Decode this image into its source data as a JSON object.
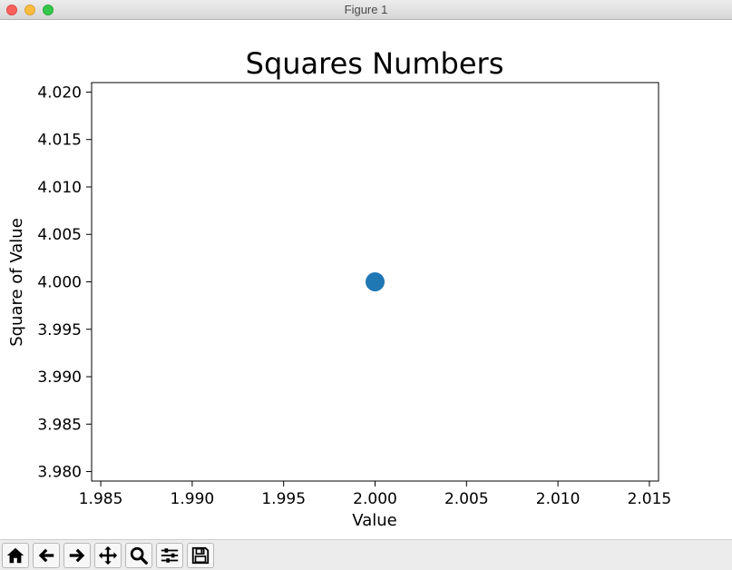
{
  "window": {
    "title": "Figure 1"
  },
  "toolbar": {
    "buttons": [
      {
        "icon": "home-icon"
      },
      {
        "icon": "back-arrow-icon"
      },
      {
        "icon": "forward-arrow-icon"
      },
      {
        "icon": "pan-icon"
      },
      {
        "icon": "zoom-icon"
      },
      {
        "icon": "configure-subplots-icon"
      },
      {
        "icon": "save-icon"
      }
    ]
  },
  "chart_data": {
    "type": "scatter",
    "title": "Squares Numbers",
    "xlabel": "Value",
    "ylabel": "Square of Value",
    "xlim": [
      1.9845,
      2.0155
    ],
    "ylim": [
      3.979,
      4.021
    ],
    "xticks": [
      1.985,
      1.99,
      1.995,
      2.0,
      2.005,
      2.01,
      2.015
    ],
    "xtick_labels": [
      "1.985",
      "1.990",
      "1.995",
      "2.000",
      "2.005",
      "2.010",
      "2.015"
    ],
    "yticks": [
      3.98,
      3.985,
      3.99,
      3.995,
      4.0,
      4.005,
      4.01,
      4.015,
      4.02
    ],
    "ytick_labels": [
      "3.980",
      "3.985",
      "3.990",
      "3.995",
      "4.000",
      "4.005",
      "4.010",
      "4.015",
      "4.020"
    ],
    "grid": false,
    "series": [
      {
        "x": [
          2.0
        ],
        "y": [
          4.0
        ],
        "color": "#1f77b4"
      }
    ]
  }
}
